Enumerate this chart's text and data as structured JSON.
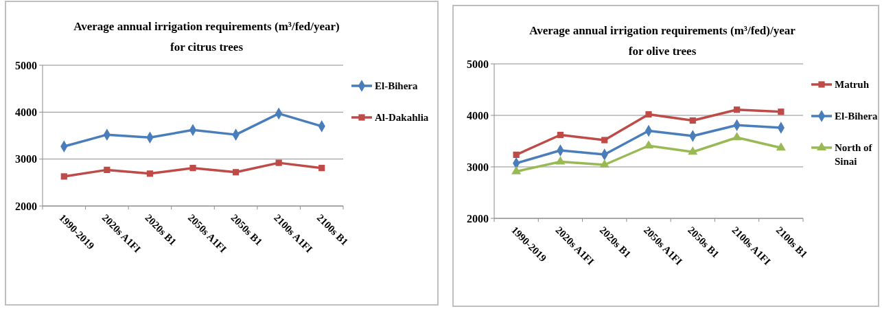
{
  "chart_data": [
    {
      "type": "line",
      "title": "Average annual irrigation requirements (m³/fed/year)",
      "subtitle": "for citrus trees",
      "categories": [
        "1990-2019",
        "2020s A1FI",
        "2020s B1",
        "2050s A1FI",
        "2050s B1",
        "2100s A1FI",
        "2100s B1"
      ],
      "ylim": [
        2000,
        5000
      ],
      "yticks": [
        2000,
        3000,
        4000,
        5000
      ],
      "grid": "y",
      "legend": "right",
      "line_style": "solid",
      "series": [
        {
          "name": "El-Bihera",
          "color": "#4a7ebb",
          "marker": "diamond",
          "values": [
            3270,
            3520,
            3460,
            3620,
            3520,
            3970,
            3700
          ]
        },
        {
          "name": "Al-Dakahlia",
          "color": "#be4b48",
          "marker": "square",
          "values": [
            2630,
            2770,
            2690,
            2810,
            2720,
            2920,
            2810
          ]
        }
      ]
    },
    {
      "type": "line",
      "title": "Average annual irrigation requirements (m³/fed)/year",
      "subtitle": "for olive trees",
      "categories": [
        "1990-2019",
        "2020s A1FI",
        "2020s B1",
        "2050s A1FI",
        "2050s B1",
        "2100s A1FI",
        "2100s B1"
      ],
      "ylim": [
        2000,
        5000
      ],
      "yticks": [
        2000,
        3000,
        4000,
        5000
      ],
      "grid": "y",
      "legend": "right",
      "line_style": "solid",
      "series": [
        {
          "name": "Matruh",
          "color": "#be4b48",
          "marker": "square",
          "values": [
            3235,
            3620,
            3520,
            4020,
            3900,
            4110,
            4070
          ]
        },
        {
          "name": "El-Bihera",
          "color": "#4a7ebb",
          "marker": "diamond",
          "values": [
            3070,
            3320,
            3240,
            3700,
            3600,
            3810,
            3760
          ]
        },
        {
          "name": "North of Sinai",
          "color": "#98b954",
          "marker": "triangle",
          "values": [
            2910,
            3100,
            3040,
            3410,
            3290,
            3570,
            3370
          ]
        }
      ]
    }
  ]
}
